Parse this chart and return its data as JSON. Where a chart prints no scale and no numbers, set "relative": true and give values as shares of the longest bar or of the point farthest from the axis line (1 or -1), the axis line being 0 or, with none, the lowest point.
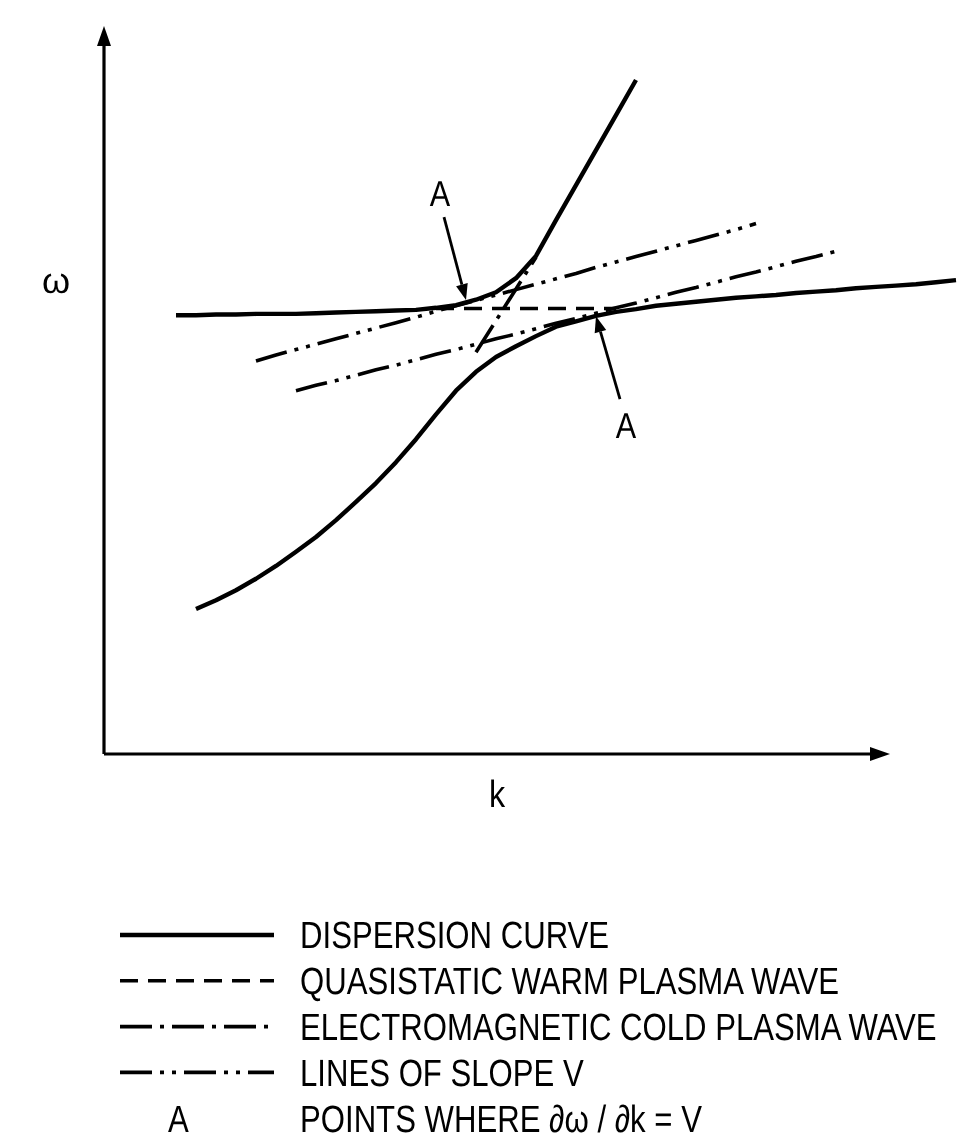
{
  "chart_data": {
    "type": "line",
    "relative": true,
    "xlabel": "k",
    "ylabel": "ω",
    "legend": "bottom",
    "categories": [
      null,
      null,
      null,
      null,
      null,
      null,
      null,
      null,
      null,
      null,
      null,
      null,
      null,
      null,
      null,
      null,
      null,
      null,
      null,
      null,
      null,
      null,
      null,
      null,
      null,
      null,
      null,
      null,
      null,
      null,
      null,
      null,
      null,
      null,
      null,
      null,
      null,
      null,
      null,
      null
    ],
    "series": [
      {
        "name": "DISPERSION CURVE",
        "color": "#000000",
        "line_style": "solid",
        "values": [
          0.651,
          0.651,
          0.652,
          0.652,
          0.653,
          0.653,
          0.653,
          0.654,
          0.655,
          0.656,
          0.657,
          0.658,
          0.659,
          0.662,
          0.666,
          0.674,
          0.685,
          0.706,
          0.739,
          0.792,
          0.844,
          0.896,
          0.948,
          1.0,
          null,
          null,
          null,
          null,
          null,
          null,
          null,
          null,
          null,
          null,
          null,
          null,
          null,
          null,
          null,
          null
        ]
      },
      {
        "color": "#000000",
        "line_style": "solid",
        "values": [
          null,
          0.215,
          0.228,
          0.243,
          0.26,
          0.279,
          0.3,
          0.322,
          0.347,
          0.374,
          0.402,
          0.433,
          0.467,
          0.504,
          0.539,
          0.567,
          0.589,
          0.605,
          0.62,
          0.634,
          0.642,
          0.65,
          0.656,
          0.66,
          0.665,
          0.668,
          0.671,
          0.674,
          0.677,
          0.679,
          0.681,
          0.684,
          0.686,
          0.688,
          0.691,
          0.693,
          0.695,
          0.697,
          0.7,
          0.703
        ]
      },
      {
        "name": "QUASISTATIC WARM PLASMA WAVE",
        "color": "#000000",
        "line_style": "dashed",
        "values": [
          null,
          null,
          null,
          null,
          null,
          null,
          null,
          null,
          null,
          null,
          null,
          null,
          null,
          0.661,
          0.661,
          0.661,
          0.661,
          0.661,
          0.661,
          0.661,
          0.661,
          0.661,
          0.661,
          null,
          null,
          null,
          null,
          null,
          null,
          null,
          null,
          null,
          null,
          null,
          null,
          null,
          null,
          null,
          null,
          null
        ]
      },
      {
        "name": "ELECTROMAGNETIC COLD PLASMA WAVE",
        "color": "#000000",
        "line_style": "dashdot",
        "values": [
          null,
          null,
          null,
          null,
          null,
          null,
          null,
          null,
          null,
          null,
          null,
          null,
          null,
          null,
          null,
          0.596,
          0.643,
          0.69,
          0.737,
          null,
          null,
          null,
          null,
          null,
          null,
          null,
          null,
          null,
          null,
          null,
          null,
          null,
          null,
          null,
          null,
          null,
          null,
          null,
          null,
          null
        ]
      },
      {
        "name": "LINES OF SLOPE V",
        "color": "#000000",
        "line_style": "dashdotdot",
        "values": [
          null,
          null,
          null,
          null,
          0.583,
          0.592,
          0.6,
          0.608,
          0.616,
          0.624,
          0.632,
          0.64,
          0.648,
          0.657,
          0.665,
          0.673,
          0.681,
          0.689,
          0.697,
          0.705,
          0.713,
          0.722,
          0.73,
          0.738,
          0.746,
          0.754,
          0.762,
          0.77,
          0.778,
          0.787,
          null,
          null,
          null,
          null,
          null,
          null,
          null,
          null,
          null,
          null
        ]
      },
      {
        "color": "#000000",
        "line_style": "dashdotdot",
        "values": [
          null,
          null,
          null,
          null,
          null,
          null,
          0.539,
          0.547,
          0.554,
          0.562,
          0.57,
          0.577,
          0.585,
          0.593,
          0.6,
          0.608,
          0.616,
          0.623,
          0.631,
          0.639,
          0.646,
          0.654,
          0.662,
          0.669,
          0.677,
          0.685,
          0.692,
          0.7,
          0.708,
          0.715,
          0.723,
          0.731,
          0.738,
          0.746,
          null,
          null,
          null,
          null,
          null,
          null
        ]
      }
    ],
    "annotations": [
      {
        "text": "A",
        "y": 0.669
      },
      {
        "text": "A",
        "y": 0.654
      },
      "A",
      "POINTS WHERE ∂ω / ∂k = V"
    ]
  }
}
